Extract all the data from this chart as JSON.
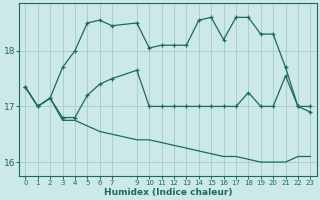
{
  "xlabel": "Humidex (Indice chaleur)",
  "bg_color": "#cce8e8",
  "grid_color": "#aacfcf",
  "line_color": "#1a6b5a",
  "x_ticks": [
    0,
    1,
    2,
    3,
    4,
    5,
    6,
    7,
    9,
    10,
    11,
    12,
    13,
    14,
    15,
    16,
    17,
    18,
    19,
    20,
    21,
    22,
    23
  ],
  "xlim": [
    -0.5,
    23.5
  ],
  "ylim": [
    15.75,
    18.85
  ],
  "yticks": [
    16,
    17,
    18
  ],
  "line_max": {
    "x": [
      0,
      1,
      2,
      3,
      4,
      5,
      6,
      7,
      9,
      10,
      11,
      12,
      13,
      14,
      15,
      16,
      17,
      18,
      19,
      20,
      21,
      22,
      23
    ],
    "y": [
      17.35,
      17.0,
      17.15,
      17.7,
      18.0,
      18.5,
      18.55,
      18.45,
      18.5,
      18.05,
      18.1,
      18.1,
      18.1,
      18.55,
      18.6,
      18.2,
      18.6,
      18.6,
      18.3,
      18.3,
      17.7,
      17.0,
      16.9
    ]
  },
  "line_mean": {
    "x": [
      0,
      1,
      2,
      3,
      4,
      5,
      6,
      7,
      9,
      10,
      11,
      12,
      13,
      14,
      15,
      16,
      17,
      18,
      19,
      20,
      21,
      22,
      23
    ],
    "y": [
      17.35,
      17.0,
      17.15,
      16.8,
      16.8,
      17.2,
      17.4,
      17.5,
      17.65,
      17.0,
      17.0,
      17.0,
      17.0,
      17.0,
      17.0,
      17.0,
      17.0,
      17.25,
      17.0,
      17.0,
      17.55,
      17.0,
      17.0
    ]
  },
  "line_min": {
    "x": [
      0,
      1,
      2,
      3,
      4,
      5,
      6,
      7,
      9,
      10,
      11,
      12,
      13,
      14,
      15,
      16,
      17,
      18,
      19,
      20,
      21,
      22,
      23
    ],
    "y": [
      17.35,
      17.0,
      17.15,
      16.75,
      16.75,
      16.65,
      16.55,
      16.5,
      16.4,
      16.4,
      16.35,
      16.3,
      16.25,
      16.2,
      16.15,
      16.1,
      16.1,
      16.05,
      16.0,
      16.0,
      16.0,
      16.1,
      16.1
    ]
  }
}
